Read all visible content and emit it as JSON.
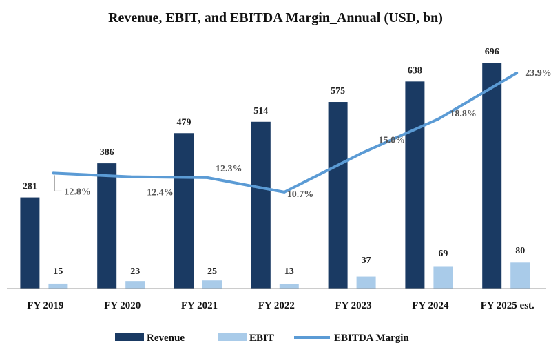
{
  "chart_data": {
    "type": "bar",
    "title": "Revenue, EBIT, and EBITDA Margin_Annual (USD, bn)",
    "categories": [
      "FY 2019",
      "FY 2020",
      "FY 2021",
      "FY 2022",
      "FY 2023",
      "FY 2024",
      "FY 2025 est."
    ],
    "series": [
      {
        "name": "Revenue",
        "type": "bar",
        "color": "#1a3a63",
        "values": [
          281,
          386,
          479,
          514,
          575,
          638,
          696
        ],
        "labels": [
          "281",
          "386",
          "479",
          "514",
          "575",
          "638",
          "696"
        ]
      },
      {
        "name": "EBIT",
        "type": "bar",
        "color": "#a9cbe9",
        "values": [
          15,
          23,
          25,
          13,
          37,
          69,
          80
        ],
        "labels": [
          "15",
          "23",
          "25",
          "13",
          "37",
          "69",
          "80"
        ]
      },
      {
        "name": "EBITDA Margin",
        "type": "line",
        "color": "#5b9bd5",
        "values": [
          12.8,
          12.4,
          12.3,
          10.7,
          15.0,
          18.8,
          23.9
        ],
        "labels": [
          "12.8%",
          "12.4%",
          "12.3%",
          "10.7%",
          "15.0%",
          "18.8%",
          "23.9%"
        ]
      }
    ],
    "ylim_bars": [
      0,
      800
    ],
    "ylim_line": [
      0,
      30
    ],
    "axis_color": "#999999",
    "legend": "bottom",
    "grid": false
  }
}
